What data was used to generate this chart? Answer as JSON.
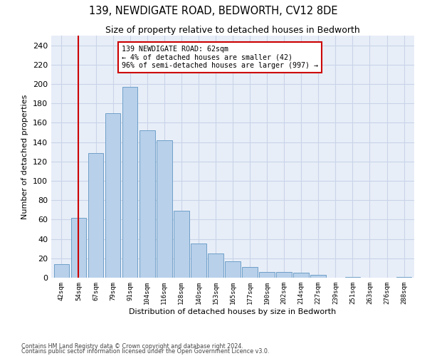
{
  "title": "139, NEWDIGATE ROAD, BEDWORTH, CV12 8DE",
  "subtitle": "Size of property relative to detached houses in Bedworth",
  "xlabel": "Distribution of detached houses by size in Bedworth",
  "ylabel": "Number of detached properties",
  "bar_labels": [
    "42sqm",
    "54sqm",
    "67sqm",
    "79sqm",
    "91sqm",
    "104sqm",
    "116sqm",
    "128sqm",
    "140sqm",
    "153sqm",
    "165sqm",
    "177sqm",
    "190sqm",
    "202sqm",
    "214sqm",
    "227sqm",
    "239sqm",
    "251sqm",
    "263sqm",
    "276sqm",
    "288sqm"
  ],
  "bar_values": [
    14,
    62,
    129,
    170,
    197,
    152,
    142,
    69,
    35,
    25,
    17,
    11,
    6,
    6,
    5,
    3,
    0,
    1,
    0,
    0,
    1
  ],
  "bar_color": "#b8d0ea",
  "bar_edge_color": "#6fa0c8",
  "vline_x": 1,
  "vline_color": "#cc0000",
  "annotation_text": "139 NEWDIGATE ROAD: 62sqm\n← 4% of detached houses are smaller (42)\n96% of semi-detached houses are larger (997) →",
  "annotation_box_color": "#ffffff",
  "annotation_box_edge_color": "#cc0000",
  "ylim": [
    0,
    250
  ],
  "yticks": [
    0,
    20,
    40,
    60,
    80,
    100,
    120,
    140,
    160,
    180,
    200,
    220,
    240
  ],
  "grid_color": "#c8d4e8",
  "background_color": "#e8eef8",
  "footer_line1": "Contains HM Land Registry data © Crown copyright and database right 2024.",
  "footer_line2": "Contains public sector information licensed under the Open Government Licence v3.0."
}
